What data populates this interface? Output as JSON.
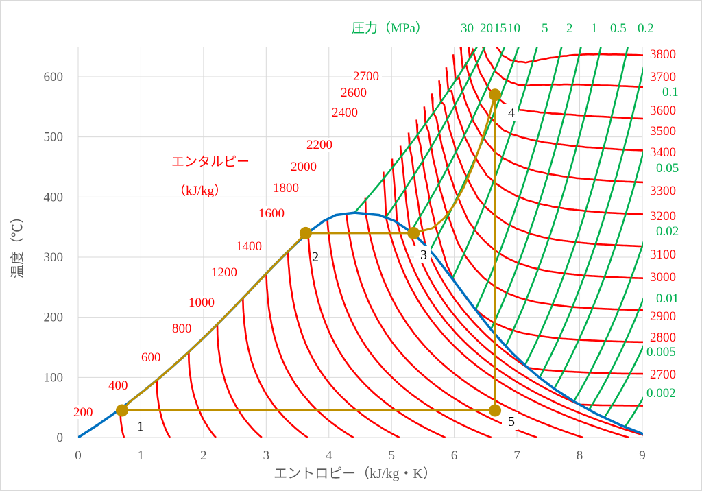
{
  "chart_data": {
    "type": "line",
    "title": "",
    "xlabel": "エントロピー（kJ/kg・K）",
    "ylabel": "温度（℃）",
    "xlim": [
      0,
      9
    ],
    "ylim": [
      0,
      650
    ],
    "xticks": [
      "0",
      "1",
      "2",
      "3",
      "4",
      "5",
      "6",
      "7",
      "8",
      "9"
    ],
    "yticks": [
      "0",
      "100",
      "200",
      "300",
      "400",
      "500",
      "600"
    ],
    "grid": true,
    "enthalpy_title": "エンタルピー",
    "enthalpy_unit": "（kJ/kg）",
    "pressure_title": "圧力（MPa）",
    "enthalpy_lines_kJkg": [
      200,
      400,
      600,
      800,
      1000,
      1200,
      1400,
      1600,
      1800,
      2000,
      2200,
      2400,
      2500,
      2600,
      2700,
      2800,
      2900,
      3000,
      3100,
      3200,
      3300,
      3400,
      3500,
      3600,
      3700,
      3800
    ],
    "enthalpy_labels_left": [
      "200",
      "400",
      "600",
      "800",
      "1000",
      "1200",
      "1400",
      "1600",
      "1800",
      "2000",
      "2200",
      "2400",
      "2600",
      "2700"
    ],
    "enthalpy_labels_right": [
      "3800",
      "3700",
      "3600",
      "3500",
      "3400",
      "3300",
      "3200",
      "3100",
      "3000",
      "2900",
      "2800",
      "2700"
    ],
    "pressure_lines_MPa": [
      30,
      20,
      15,
      10,
      5,
      2,
      1,
      0.5,
      0.2,
      0.1,
      0.05,
      0.02,
      0.01,
      0.005,
      0.002
    ],
    "pressure_labels_top": [
      "30",
      "20",
      "15",
      "10",
      "5",
      "2",
      "1",
      "0.5",
      "0.2"
    ],
    "pressure_labels_right": [
      "0.1",
      "0.05",
      "0.02",
      "0.01",
      "0.005",
      "0.002"
    ],
    "saturation_curve": [
      {
        "T": 0,
        "s_liquid": 0,
        "s_vapor": 9.155
      },
      {
        "T": 20,
        "s_liquid": 0.296,
        "s_vapor": 8.666
      },
      {
        "T": 40,
        "s_liquid": 0.572,
        "s_vapor": 8.256
      },
      {
        "T": 60,
        "s_liquid": 0.831,
        "s_vapor": 7.909
      },
      {
        "T": 80,
        "s_liquid": 1.075,
        "s_vapor": 7.612
      },
      {
        "T": 100,
        "s_liquid": 1.307,
        "s_vapor": 7.355
      },
      {
        "T": 120,
        "s_liquid": 1.527,
        "s_vapor": 7.13
      },
      {
        "T": 140,
        "s_liquid": 1.739,
        "s_vapor": 6.929
      },
      {
        "T": 160,
        "s_liquid": 1.943,
        "s_vapor": 6.75
      },
      {
        "T": 180,
        "s_liquid": 2.14,
        "s_vapor": 6.585
      },
      {
        "T": 200,
        "s_liquid": 2.331,
        "s_vapor": 6.432
      },
      {
        "T": 220,
        "s_liquid": 2.518,
        "s_vapor": 6.285
      },
      {
        "T": 240,
        "s_liquid": 2.702,
        "s_vapor": 6.142
      },
      {
        "T": 260,
        "s_liquid": 2.884,
        "s_vapor": 5.999
      },
      {
        "T": 280,
        "s_liquid": 3.067,
        "s_vapor": 5.853
      },
      {
        "T": 300,
        "s_liquid": 3.255,
        "s_vapor": 5.705
      },
      {
        "T": 320,
        "s_liquid": 3.449,
        "s_vapor": 5.537
      },
      {
        "T": 340,
        "s_liquid": 3.66,
        "s_vapor": 5.336
      },
      {
        "T": 360,
        "s_liquid": 3.916,
        "s_vapor": 5.053
      },
      {
        "T": 370,
        "s_liquid": 4.111,
        "s_vapor": 4.801
      },
      {
        "T": 374,
        "s_liquid": 4.41,
        "s_vapor": 4.41
      }
    ],
    "cycle_points": [
      {
        "label": "1",
        "s": 0.7,
        "T": 45
      },
      {
        "label": "2",
        "s": 3.63,
        "T": 340
      },
      {
        "label": "3",
        "s": 5.35,
        "T": 340
      },
      {
        "label": "4",
        "s": 6.65,
        "T": 570
      },
      {
        "label": "5",
        "s": 6.65,
        "T": 45
      }
    ],
    "colors": {
      "enthalpy": "#ff0000",
      "pressure": "#00b050",
      "saturation": "#0070c0",
      "cycle": "#bf9000",
      "grid": "#d9d9d9",
      "text": "#595959"
    }
  }
}
